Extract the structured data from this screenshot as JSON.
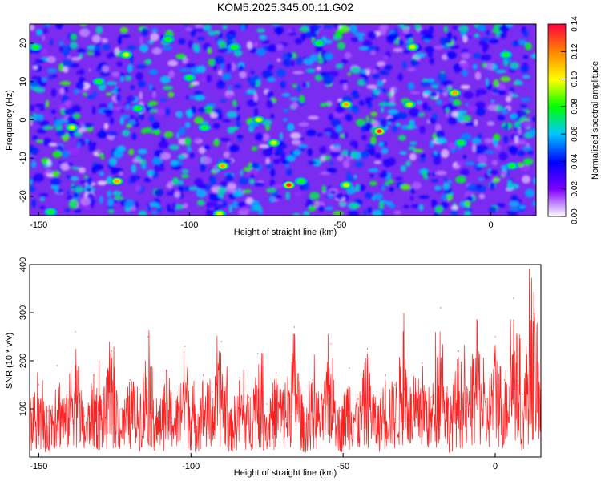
{
  "chart_data": [
    {
      "type": "heatmap",
      "title": "KOM5.2025.345.00.11.G02",
      "xlabel": "Height of straight line (km)",
      "ylabel": "Frequency (Hz)",
      "xlim": [
        -153,
        15
      ],
      "ylim": [
        -25,
        25
      ],
      "x_ticks": [
        -150,
        -100,
        -50,
        0
      ],
      "y_ticks": [
        20,
        10,
        0,
        -10,
        -20
      ],
      "colorbar": {
        "label": "Normalized spectral amplitude",
        "range": [
          0,
          0.14
        ],
        "ticks": [
          "0.00",
          "0.02",
          "0.04",
          "0.06",
          "0.08",
          "0.10",
          "0.12",
          "0.14"
        ],
        "colors": [
          "#ffffff",
          "#8000ff",
          "#0000ff",
          "#00c8ff",
          "#00ff00",
          "#ffff00",
          "#ff8000",
          "#ff0040"
        ]
      },
      "hotspots": [
        {
          "x": -37,
          "y": -3,
          "v": 0.14
        },
        {
          "x": -67,
          "y": -17,
          "v": 0.13
        },
        {
          "x": -124,
          "y": -16,
          "v": 0.12
        },
        {
          "x": -89,
          "y": -12,
          "v": 0.12
        },
        {
          "x": -139,
          "y": -2,
          "v": 0.1
        },
        {
          "x": -77,
          "y": 0,
          "v": 0.1
        },
        {
          "x": -48,
          "y": 4,
          "v": 0.11
        },
        {
          "x": -12,
          "y": 7,
          "v": 0.11
        },
        {
          "x": -27,
          "y": 4,
          "v": 0.1
        },
        {
          "x": -121,
          "y": 17,
          "v": 0.09
        },
        {
          "x": -90,
          "y": -24.5,
          "v": 0.09
        },
        {
          "x": -48,
          "y": -17,
          "v": 0.09
        },
        {
          "x": -26,
          "y": 19,
          "v": 0.09
        },
        {
          "x": -107,
          "y": 21,
          "v": 0.08
        },
        {
          "x": -63,
          "y": -16,
          "v": 0.08
        },
        {
          "x": -117,
          "y": 3,
          "v": 0.08
        },
        {
          "x": -100,
          "y": 11,
          "v": 0.07
        },
        {
          "x": -146,
          "y": -24,
          "v": 0.07
        },
        {
          "x": 7,
          "y": -12,
          "v": 0.08
        },
        {
          "x": -57,
          "y": 20,
          "v": 0.07
        },
        {
          "x": -95,
          "y": -2,
          "v": 0.07
        },
        {
          "x": -10,
          "y": -6,
          "v": 0.08
        },
        {
          "x": -130,
          "y": 10,
          "v": 0.07
        },
        {
          "x": -72,
          "y": -6,
          "v": 0.09
        },
        {
          "x": -85,
          "y": 19,
          "v": 0.07
        },
        {
          "x": 5,
          "y": 17,
          "v": 0.07
        },
        {
          "x": -151,
          "y": 19,
          "v": 0.08
        }
      ]
    },
    {
      "type": "line",
      "xlabel": "Height of straight line (km)",
      "ylabel": "SNR (10 * v/v)",
      "xlim": [
        -153,
        15
      ],
      "ylim": [
        0,
        400
      ],
      "x_ticks": [
        -150,
        -100,
        -50,
        0
      ],
      "y_ticks": [
        100,
        200,
        300,
        400
      ],
      "series": [
        {
          "color": "#ff2020",
          "x": [
            -153,
            -150,
            -147,
            -144,
            -141,
            -138,
            -135,
            -132,
            -129,
            -126,
            -123,
            -120,
            -117,
            -114,
            -111,
            -108,
            -105,
            -102,
            -99,
            -96,
            -93,
            -90,
            -87,
            -84,
            -81,
            -78,
            -75,
            -72,
            -69,
            -66,
            -63,
            -60,
            -57,
            -54,
            -51,
            -48,
            -45,
            -42,
            -39,
            -36,
            -33,
            -30,
            -27,
            -24,
            -21,
            -18,
            -15,
            -12,
            -9,
            -6,
            -3,
            0,
            3,
            6,
            9,
            12,
            15
          ],
          "y": [
            110,
            150,
            95,
            190,
            120,
            260,
            85,
            170,
            130,
            220,
            100,
            160,
            140,
            250,
            90,
            180,
            115,
            230,
            105,
            170,
            135,
            240,
            95,
            165,
            125,
            215,
            110,
            175,
            140,
            270,
            100,
            160,
            130,
            235,
            95,
            185,
            120,
            225,
            105,
            170,
            150,
            260,
            115,
            195,
            125,
            310,
            110,
            220,
            140,
            280,
            120,
            250,
            160,
            330,
            130,
            400,
            150
          ]
        }
      ]
    }
  ]
}
